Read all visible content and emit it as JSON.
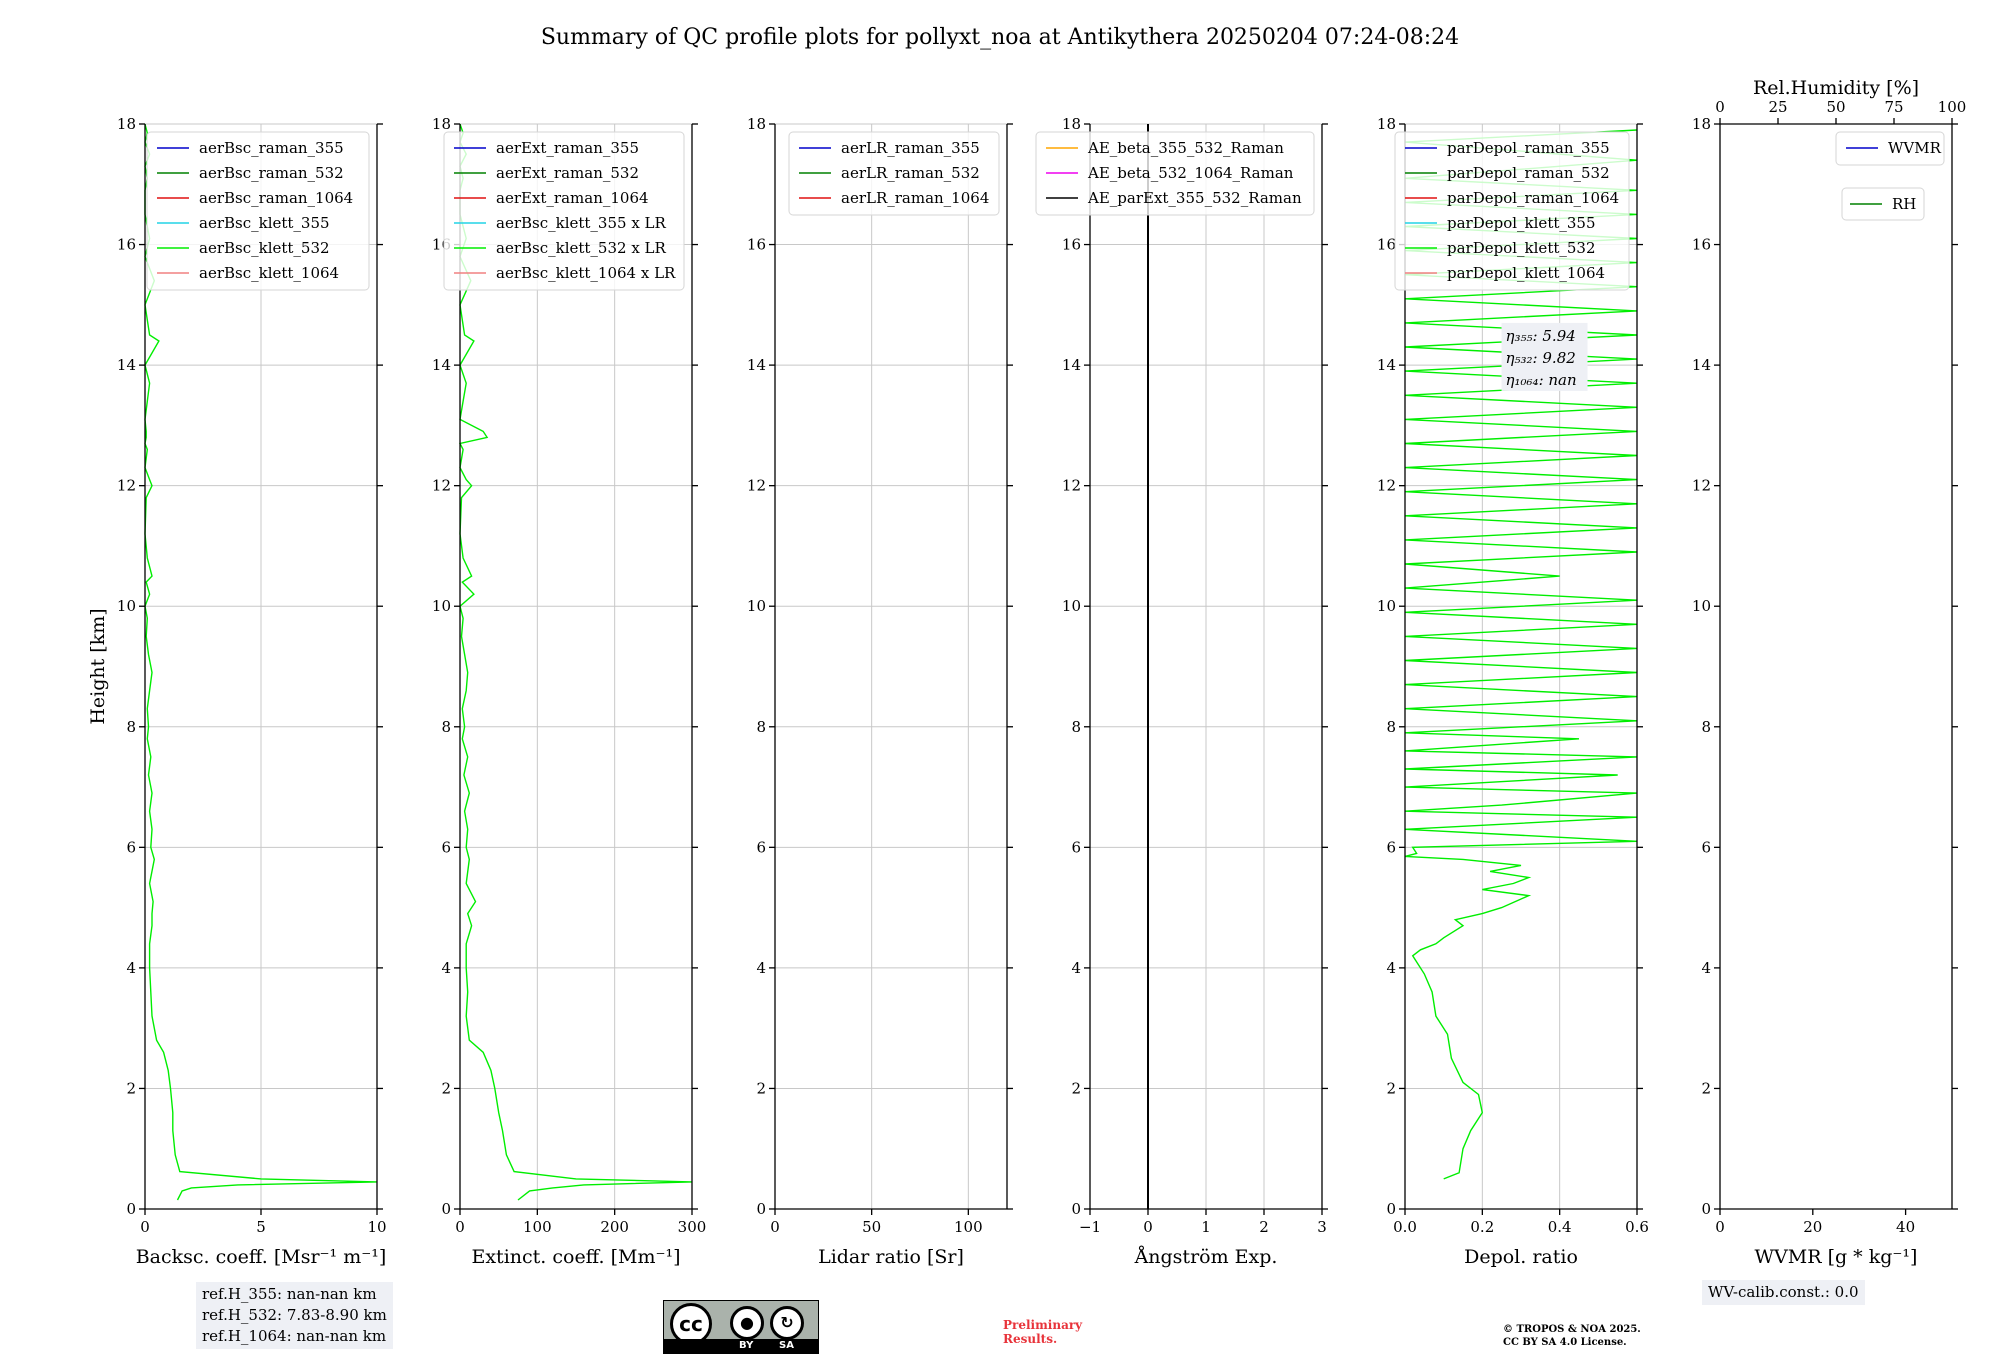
{
  "title": "Summary of QC profile plots for pollyxt_noa at Antikythera 20250204 07:24-08:24",
  "colors": {
    "raman_355": "#0000cc",
    "raman_532": "#008000",
    "raman_1064": "#e01010",
    "klett_355": "#22d3e6",
    "klett_532": "#00ee00",
    "klett_1064": "#f08080",
    "ae_beta_355_532": "#ffa500",
    "ae_beta_532_1064": "#ee00ee",
    "ae_parext": "#000000",
    "wvmr": "#0000cc",
    "rh": "#008000"
  },
  "chart_data": [
    {
      "type": "line",
      "name": "backscatter",
      "xlabel": "Backsc. coeff. [Msr⁻¹ m⁻¹]",
      "ylabel": "Height [km]",
      "xlim": [
        0,
        10
      ],
      "ylim": [
        0,
        18
      ],
      "xticks": [
        0,
        5,
        10
      ],
      "yticks": [
        0,
        2,
        4,
        6,
        8,
        10,
        12,
        14,
        16,
        18
      ],
      "grid": true,
      "legend_position": "top-right",
      "legend": [
        "aerBsc_raman_355",
        "aerBsc_raman_532",
        "aerBsc_raman_1064",
        "aerBsc_klett_355",
        "aerBsc_klett_532",
        "aerBsc_klett_1064"
      ],
      "series": [
        {
          "name": "aerBsc_klett_532",
          "color": "klett_532",
          "x": [
            1.4,
            1.6,
            2.0,
            4.0,
            10.0,
            5.0,
            1.5,
            1.3,
            1.2,
            1.2,
            1.1,
            1.0,
            0.8,
            0.5,
            0.3,
            0.25,
            0.2,
            0.2,
            0.3,
            0.3,
            0.35,
            0.2,
            0.4,
            0.25,
            0.3,
            0.2,
            0.3,
            0.15,
            0.25,
            0.1,
            0.15,
            0.1,
            0.2,
            0.3,
            0.15,
            0.05,
            0.1,
            0.0,
            0.2,
            0.05,
            0.3,
            0.1,
            0.0,
            0.05,
            0.3,
            0.2,
            0.0,
            0.1,
            0.0,
            0.05,
            0.05,
            0.0,
            0.1,
            0.2,
            0.0,
            0.6,
            0.2,
            0.0,
            0.4,
            0.0,
            0.2,
            0.0,
            0.0,
            0.1,
            0.0,
            0.2,
            0.0,
            0.1,
            0.0
          ],
          "y": [
            0.15,
            0.3,
            0.35,
            0.4,
            0.45,
            0.5,
            0.62,
            0.9,
            1.3,
            1.6,
            2.0,
            2.3,
            2.6,
            2.8,
            3.2,
            3.6,
            4.0,
            4.4,
            4.7,
            4.9,
            5.1,
            5.4,
            5.8,
            6.0,
            6.3,
            6.6,
            6.9,
            7.2,
            7.5,
            7.8,
            8.0,
            8.3,
            8.6,
            8.9,
            9.2,
            9.5,
            9.8,
            10.0,
            10.2,
            10.4,
            10.5,
            10.8,
            11.2,
            11.8,
            12.0,
            12.1,
            12.3,
            12.6,
            12.7,
            12.8,
            12.9,
            13.1,
            13.4,
            13.7,
            14.0,
            14.4,
            14.5,
            15.0,
            15.4,
            15.8,
            16.1,
            16.5,
            16.9,
            17.1,
            17.3,
            17.5,
            17.7,
            17.85,
            18.0
          ]
        }
      ]
    },
    {
      "type": "line",
      "name": "extinction",
      "xlabel": "Extinct. coeff. [Mm⁻¹]",
      "xlim": [
        0,
        300
      ],
      "ylim": [
        0,
        18
      ],
      "xticks": [
        0,
        100,
        200,
        300
      ],
      "yticks": [
        0,
        2,
        4,
        6,
        8,
        10,
        12,
        14,
        16,
        18
      ],
      "grid": true,
      "legend_position": "top-right",
      "legend": [
        "aerExt_raman_355",
        "aerExt_raman_532",
        "aerExt_raman_1064",
        "aerBsc_klett_355 x LR",
        "aerBsc_klett_532 x LR",
        "aerBsc_klett_1064 x LR"
      ],
      "series": [
        {
          "name": "aerBsc_klett_532 x LR",
          "color": "klett_532",
          "x": [
            75,
            90,
            120,
            160,
            300,
            150,
            70,
            60,
            55,
            50,
            45,
            40,
            30,
            12,
            8,
            10,
            8,
            8,
            15,
            10,
            20,
            8,
            12,
            8,
            10,
            6,
            12,
            5,
            10,
            3,
            6,
            3,
            8,
            10,
            6,
            2,
            4,
            0,
            18,
            3,
            15,
            4,
            0,
            2,
            15,
            8,
            0,
            4,
            0,
            35,
            30,
            0,
            4,
            8,
            0,
            18,
            6,
            0,
            14,
            0,
            8,
            0,
            0,
            4,
            0,
            8,
            0,
            4,
            0
          ],
          "y": [
            0.15,
            0.3,
            0.35,
            0.4,
            0.45,
            0.5,
            0.62,
            0.9,
            1.3,
            1.6,
            2.0,
            2.3,
            2.6,
            2.8,
            3.2,
            3.6,
            4.0,
            4.4,
            4.7,
            4.9,
            5.1,
            5.4,
            5.8,
            6.0,
            6.3,
            6.6,
            6.9,
            7.2,
            7.5,
            7.8,
            8.0,
            8.3,
            8.6,
            8.9,
            9.2,
            9.5,
            9.8,
            10.0,
            10.2,
            10.4,
            10.5,
            10.8,
            11.2,
            11.8,
            12.0,
            12.1,
            12.3,
            12.6,
            12.7,
            12.8,
            12.9,
            13.1,
            13.4,
            13.7,
            14.0,
            14.4,
            14.5,
            15.0,
            15.4,
            15.8,
            16.1,
            16.5,
            16.9,
            17.1,
            17.3,
            17.5,
            17.7,
            17.85,
            18.0
          ]
        }
      ]
    },
    {
      "type": "line",
      "name": "lidar-ratio",
      "xlabel": "Lidar ratio [Sr]",
      "xlim": [
        0,
        120
      ],
      "ylim": [
        0,
        18
      ],
      "xticks": [
        0,
        50,
        100
      ],
      "yticks": [
        0,
        2,
        4,
        6,
        8,
        10,
        12,
        14,
        16,
        18
      ],
      "grid": true,
      "legend_position": "top-right",
      "legend": [
        "aerLR_raman_355",
        "aerLR_raman_532",
        "aerLR_raman_1064"
      ],
      "series": []
    },
    {
      "type": "line",
      "name": "angstrom",
      "xlabel": "Ångström Exp.",
      "xlim": [
        -1,
        3
      ],
      "ylim": [
        0,
        18
      ],
      "xticks": [
        -1,
        0,
        1,
        2,
        3
      ],
      "xticklabels": [
        "−1",
        "0",
        "1",
        "2",
        "3"
      ],
      "yticks": [
        0,
        2,
        4,
        6,
        8,
        10,
        12,
        14,
        16,
        18
      ],
      "grid": true,
      "legend_position": "top-right",
      "legend": [
        "AE_beta_355_532_Raman",
        "AE_beta_532_1064_Raman",
        "AE_parExt_355_532_Raman"
      ],
      "series": [
        {
          "name": "AE_parExt_355_532_Raman",
          "color": "ae_parext",
          "x": [
            0,
            0
          ],
          "y": [
            0,
            18
          ]
        }
      ]
    },
    {
      "type": "line",
      "name": "depolarization",
      "xlabel": "Depol. ratio",
      "xlim": [
        0.0,
        0.6
      ],
      "ylim": [
        0,
        18
      ],
      "xticks": [
        0.0,
        0.2,
        0.4,
        0.6
      ],
      "xticklabels": [
        "0.0",
        "0.2",
        "0.4",
        "0.6"
      ],
      "yticks": [
        0,
        2,
        4,
        6,
        8,
        10,
        12,
        14,
        16,
        18
      ],
      "grid": true,
      "legend_position": "top-right",
      "legend": [
        "parDepol_raman_355",
        "parDepol_raman_532",
        "parDepol_raman_1064",
        "parDepol_klett_355",
        "parDepol_klett_532",
        "parDepol_klett_1064"
      ],
      "annotation": [
        "η₃₅₅: 5.94",
        "η₅₃₂: 9.82",
        "η₁₀₆₄: nan"
      ],
      "series": [
        {
          "name": "parDepol_klett_532",
          "color": "klett_532",
          "x": [
            0.1,
            0.14,
            0.15,
            0.17,
            0.2,
            0.19,
            0.15,
            0.12,
            0.11,
            0.08,
            0.07,
            0.05,
            0.03,
            0.02,
            0.04,
            0.08,
            0.1,
            0.15,
            0.13,
            0.2,
            0.25,
            0.32,
            0.2,
            0.28,
            0.32,
            0.22,
            0.3,
            0.15,
            0.0,
            0.03,
            0.02,
            0.6,
            0.0,
            0.6,
            0.0,
            0.25,
            0.6,
            0.0,
            0.55,
            0.0,
            0.6,
            0.0,
            0.45,
            0.0,
            0.6,
            0.0,
            0.6,
            0.0,
            0.6,
            0.0,
            0.6,
            0.0,
            0.6,
            0.0,
            0.6,
            0.0,
            0.4,
            0.0,
            0.6,
            0.0,
            0.6,
            0.0,
            0.6,
            0.0,
            0.6,
            0.0,
            0.6,
            0.0,
            0.6,
            0.0,
            0.6,
            0.0,
            0.6,
            0.0,
            0.6,
            0.0,
            0.6,
            0.0,
            0.6,
            0.0,
            0.6,
            0.0,
            0.6,
            0.0,
            0.6,
            0.0,
            0.6,
            0.0,
            0.6,
            0.0,
            0.6,
            0.0,
            0.6
          ],
          "y": [
            0.5,
            0.6,
            1.0,
            1.3,
            1.6,
            1.9,
            2.1,
            2.5,
            2.9,
            3.2,
            3.6,
            3.9,
            4.1,
            4.2,
            4.3,
            4.4,
            4.5,
            4.7,
            4.8,
            4.9,
            5.0,
            5.2,
            5.3,
            5.4,
            5.5,
            5.6,
            5.7,
            5.8,
            5.85,
            5.9,
            6.0,
            6.1,
            6.3,
            6.5,
            6.6,
            6.7,
            6.9,
            7.0,
            7.2,
            7.3,
            7.5,
            7.6,
            7.8,
            7.9,
            8.1,
            8.3,
            8.5,
            8.7,
            8.9,
            9.1,
            9.3,
            9.5,
            9.7,
            9.9,
            10.1,
            10.3,
            10.5,
            10.7,
            10.9,
            11.1,
            11.3,
            11.5,
            11.7,
            11.9,
            12.1,
            12.3,
            12.5,
            12.7,
            12.9,
            13.1,
            13.3,
            13.5,
            13.7,
            13.9,
            14.1,
            14.3,
            14.5,
            14.7,
            14.9,
            15.1,
            15.3,
            15.5,
            15.7,
            15.9,
            16.1,
            16.3,
            16.5,
            16.7,
            16.9,
            17.1,
            17.4,
            17.7,
            17.9
          ]
        }
      ]
    },
    {
      "type": "line",
      "name": "water-vapour",
      "xlabel": "WVMR [g * kg⁻¹]",
      "xlim": [
        0,
        50
      ],
      "ylim": [
        0,
        18
      ],
      "xticks": [
        0,
        20,
        40
      ],
      "yticks": [
        0,
        2,
        4,
        6,
        8,
        10,
        12,
        14,
        16,
        18
      ],
      "grid": false,
      "secondary_xaxis": {
        "label": "Rel.Humidity [%]",
        "xlim": [
          0,
          100
        ],
        "xticks": [
          0,
          25,
          50,
          75,
          100
        ]
      },
      "legend_position": "top-right",
      "legend": [
        "WVMR"
      ],
      "legend2": [
        "RH"
      ],
      "series": []
    }
  ],
  "notes": {
    "ref_h": [
      "ref.H_355: nan-nan km",
      "ref.H_532: 7.83-8.90 km",
      "ref.H_1064: nan-nan km"
    ],
    "wv_calib": "WV-calib.const.: 0.0",
    "preliminary": [
      "Preliminary",
      "Results."
    ],
    "copyright": [
      "© TROPOS & NOA 2025.",
      "CC BY SA 4.0 License."
    ]
  },
  "cc_badge": {
    "cc": "cc",
    "by": "BY",
    "sa": "SA"
  }
}
